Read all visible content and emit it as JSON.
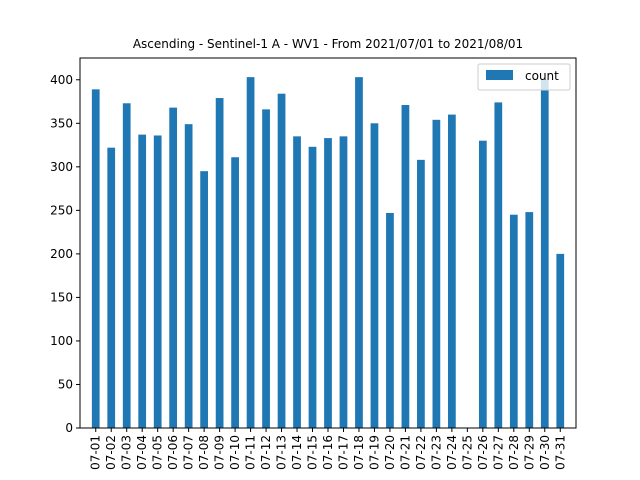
{
  "chart_data": {
    "type": "bar",
    "title": "Ascending - Sentinel-1 A - WV1 - From 2021/07/01 to 2021/08/01",
    "xlabel": "",
    "ylabel": "",
    "ylim": [
      0,
      425
    ],
    "yticks": [
      0,
      50,
      100,
      150,
      200,
      250,
      300,
      350,
      400
    ],
    "grid": false,
    "legend_position": "top-right",
    "categories": [
      "07-01",
      "07-02",
      "07-03",
      "07-04",
      "07-05",
      "07-06",
      "07-07",
      "07-08",
      "07-09",
      "07-10",
      "07-11",
      "07-12",
      "07-13",
      "07-14",
      "07-15",
      "07-16",
      "07-17",
      "07-18",
      "07-19",
      "07-20",
      "07-21",
      "07-22",
      "07-23",
      "07-24",
      "07-25",
      "07-26",
      "07-27",
      "07-28",
      "07-29",
      "07-30",
      "07-31"
    ],
    "series": [
      {
        "name": "count",
        "color": "#1f77b4",
        "values": [
          389,
          322,
          373,
          337,
          336,
          368,
          349,
          295,
          379,
          311,
          403,
          366,
          384,
          335,
          323,
          333,
          335,
          403,
          350,
          247,
          371,
          308,
          354,
          360,
          0,
          330,
          374,
          245,
          248,
          400,
          200
        ]
      }
    ]
  }
}
